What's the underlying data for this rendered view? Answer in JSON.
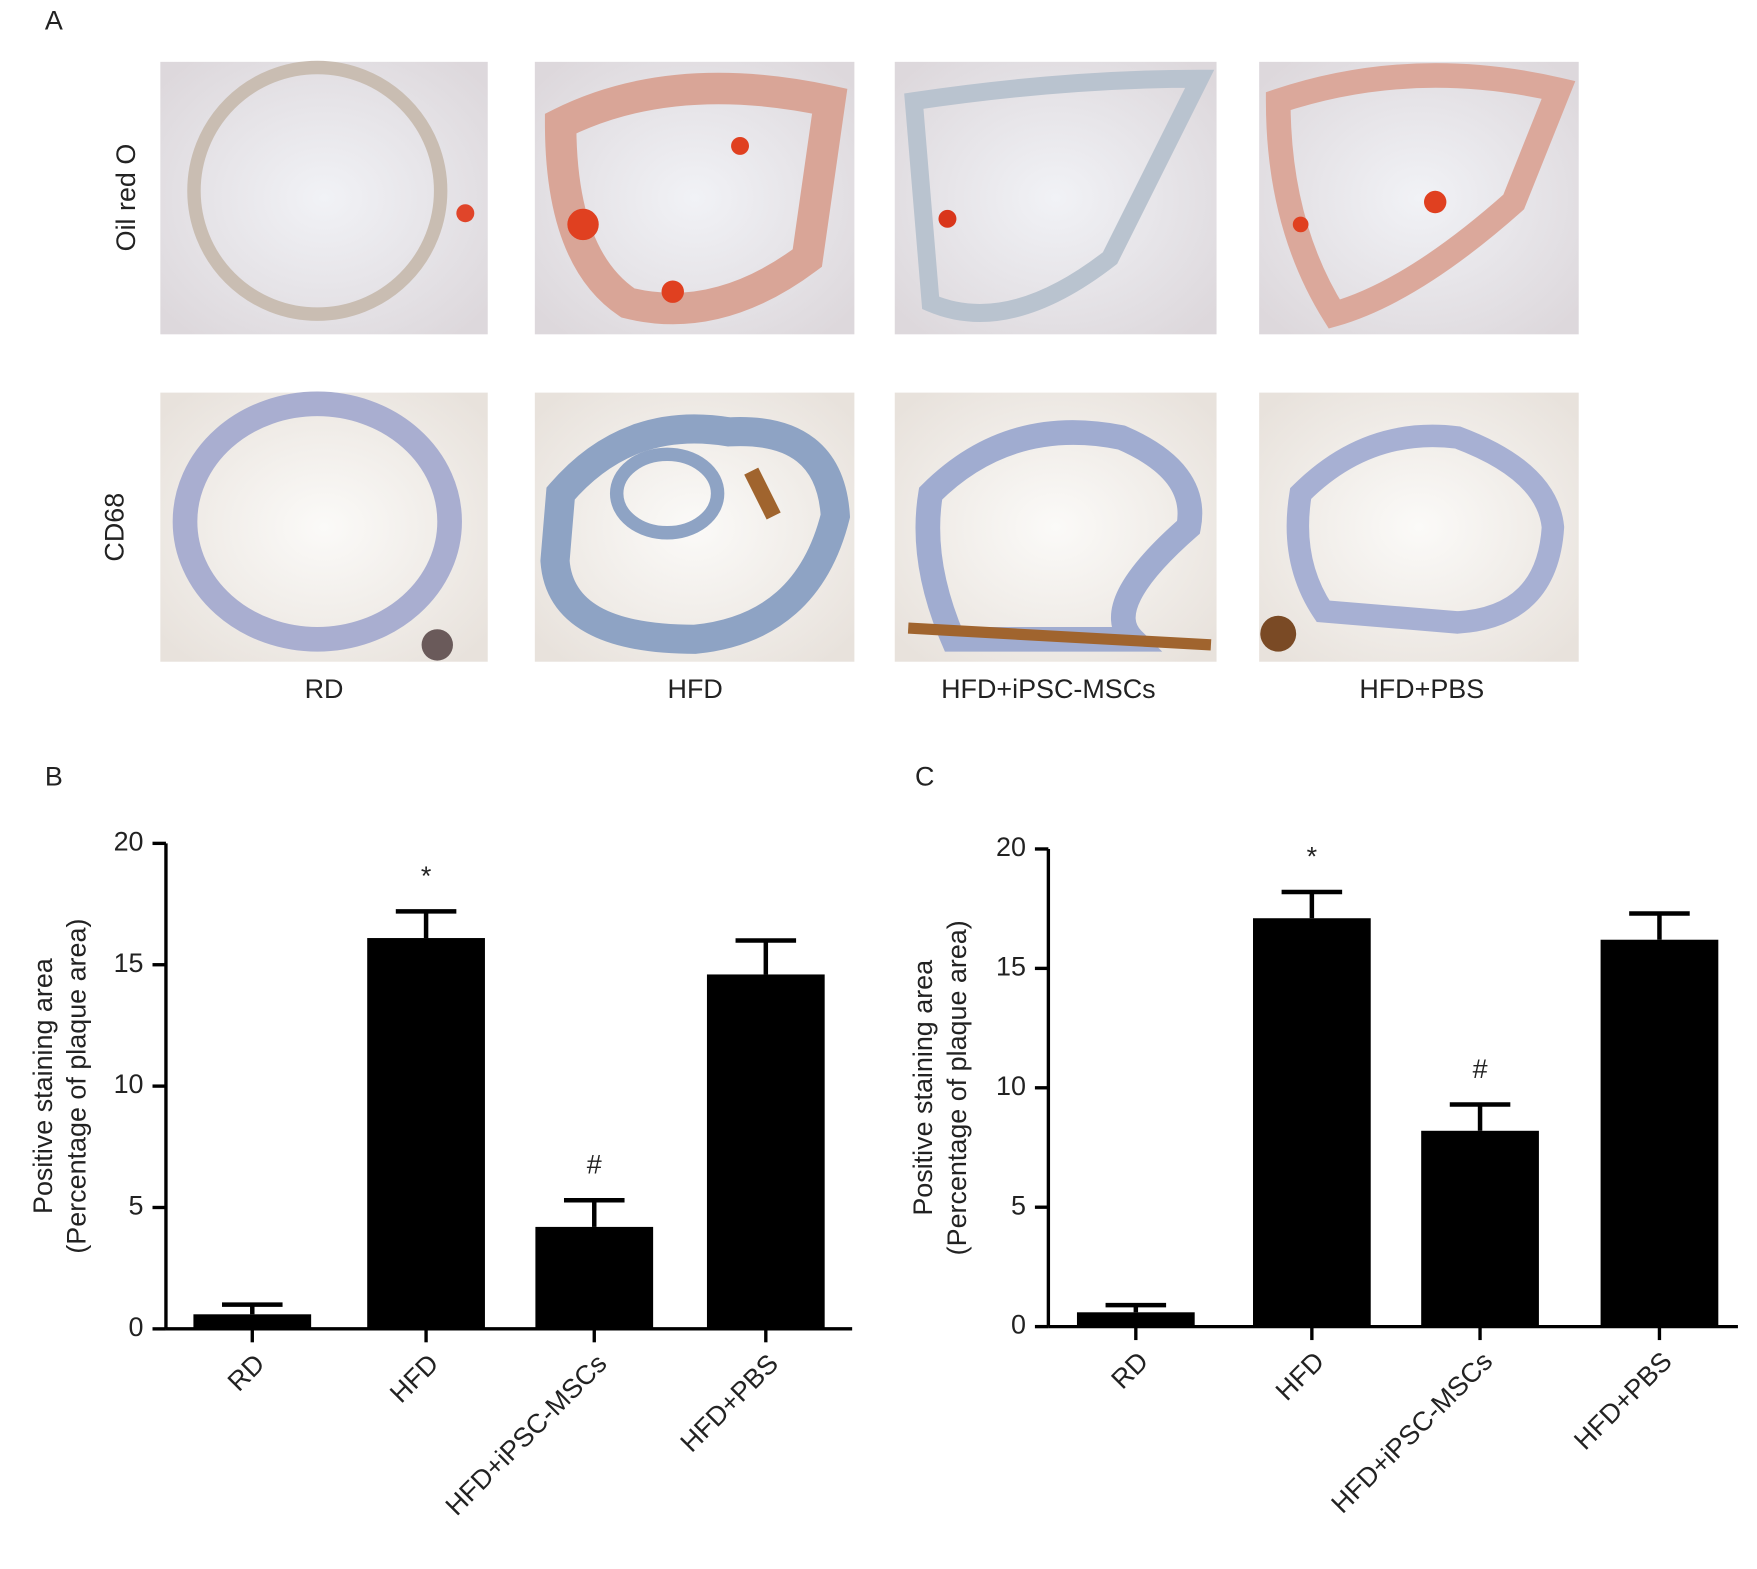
{
  "panel_a": {
    "label": "A",
    "rows": [
      "Oil red O",
      "CD68"
    ],
    "columns": [
      "RD",
      "HFD",
      "HFD+iPSC-MSCs",
      "HFD+PBS"
    ]
  },
  "chart_data": [
    {
      "type": "bar",
      "panel_label": "B",
      "ylabel": [
        "Positive staining area",
        "(Percentage of plaque area)"
      ],
      "categories": [
        "RD",
        "HFD",
        "HFD+iPSC-MSCs",
        "HFD+PBS"
      ],
      "values": [
        0.6,
        16.1,
        4.2,
        14.6
      ],
      "errors": [
        0.4,
        1.1,
        1.1,
        1.4
      ],
      "color": "#000000",
      "annotations": [
        {
          "category": "HFD",
          "text": "*"
        },
        {
          "category": "HFD+iPSC-MSCs",
          "text": "#"
        }
      ],
      "ylim": [
        0,
        20
      ],
      "yticks": [
        0,
        5,
        10,
        15,
        20
      ]
    },
    {
      "type": "bar",
      "panel_label": "C",
      "ylabel": [
        "Positive staining area",
        "(Percentage of plaque area)"
      ],
      "categories": [
        "RD",
        "HFD",
        "HFD+iPSC-MSCs",
        "HFD+PBS"
      ],
      "values": [
        0.6,
        17.1,
        8.2,
        16.2
      ],
      "errors": [
        0.3,
        1.1,
        1.1,
        1.1
      ],
      "color": "#000000",
      "annotations": [
        {
          "category": "HFD",
          "text": "*"
        },
        {
          "category": "HFD+iPSC-MSCs",
          "text": "#"
        }
      ],
      "ylim": [
        0,
        20
      ],
      "yticks": [
        0,
        5,
        10,
        15,
        20
      ]
    }
  ]
}
